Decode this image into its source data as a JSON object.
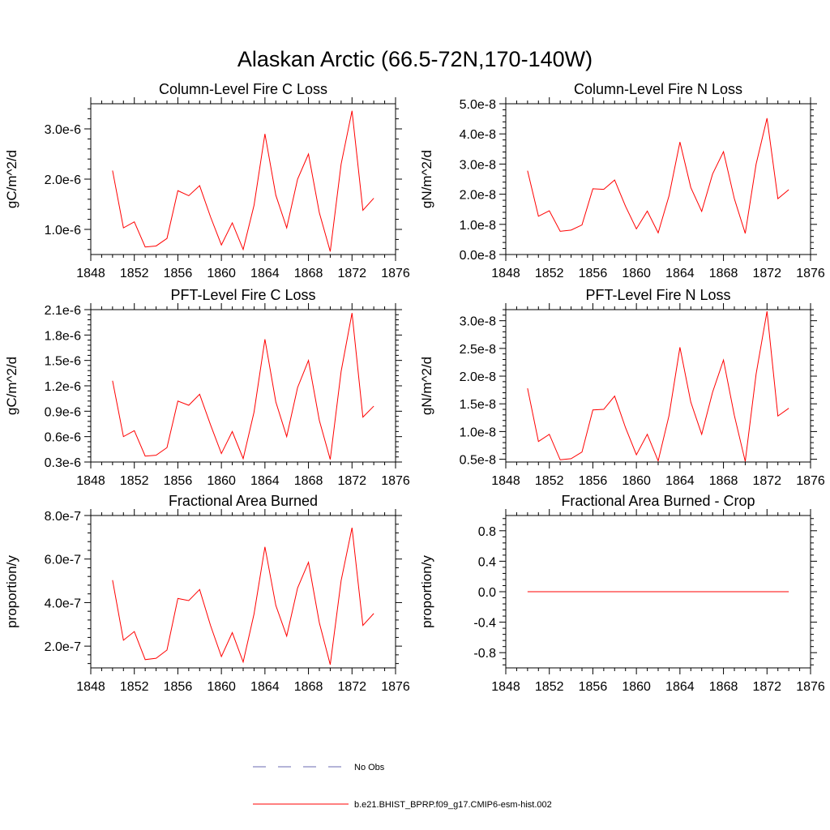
{
  "title": "Alaskan Arctic (66.5-72N,170-140W)",
  "colors": {
    "model": "#ff0000",
    "obs": "#6a6ab0"
  },
  "legend": {
    "position": "bottom-center",
    "entries": [
      {
        "label": "No Obs",
        "style": "dashed",
        "color": "#6a6ab0"
      },
      {
        "label": "b.e21.BHIST_BPRP.f09_g17.CMIP6-esm-hist.002",
        "style": "solid",
        "color": "#ff0000"
      }
    ]
  },
  "chart_data": [
    {
      "type": "line",
      "title": "Column-Level Fire C Loss",
      "ylabel": "gC/m^2/d",
      "xlim": [
        1848,
        1876
      ],
      "x_ticks": [
        1848,
        1852,
        1856,
        1860,
        1864,
        1868,
        1872,
        1876
      ],
      "x_tick_labels": [
        "1848",
        "1852",
        "1856",
        "1860",
        "1864",
        "1868",
        "1872",
        "1876"
      ],
      "ylim": [
        5e-07,
        3.5e-06
      ],
      "y_ticks": [
        1e-06,
        2e-06,
        3e-06
      ],
      "y_tick_labels": [
        "1.0e-6",
        "2.0e-6",
        "3.0e-6"
      ],
      "series": [
        {
          "x": [
            1850,
            1851,
            1852,
            1853,
            1854,
            1855,
            1856,
            1857,
            1858,
            1859,
            1860,
            1861,
            1862,
            1863,
            1864,
            1865,
            1866,
            1867,
            1868,
            1869,
            1870,
            1871,
            1872,
            1873,
            1874
          ],
          "values": [
            2.17e-06,
            1.03e-06,
            1.15e-06,
            6.5e-07,
            6.7e-07,
            8.2e-07,
            1.77e-06,
            1.67e-06,
            1.87e-06,
            1.25e-06,
            6.9e-07,
            1.13e-06,
            6e-07,
            1.48e-06,
            2.9e-06,
            1.68e-06,
            1.03e-06,
            2e-06,
            2.5e-06,
            1.33e-06,
            5.6e-07,
            2.3e-06,
            3.36e-06,
            1.38e-06,
            1.62e-06
          ]
        }
      ]
    },
    {
      "type": "line",
      "title": "Column-Level Fire N Loss",
      "ylabel": "gN/m^2/d",
      "xlim": [
        1848,
        1876
      ],
      "x_ticks": [
        1848,
        1852,
        1856,
        1860,
        1864,
        1868,
        1872,
        1876
      ],
      "x_tick_labels": [
        "1848",
        "1852",
        "1856",
        "1860",
        "1864",
        "1868",
        "1872",
        "1876"
      ],
      "ylim": [
        0.0,
        5e-08
      ],
      "y_ticks": [
        0.0,
        1e-08,
        2e-08,
        3e-08,
        4e-08,
        5e-08
      ],
      "y_tick_labels": [
        "0.0e-8",
        "1.0e-8",
        "2.0e-8",
        "3.0e-8",
        "4.0e-8",
        "5.0e-8"
      ],
      "series": [
        {
          "x": [
            1850,
            1851,
            1852,
            1853,
            1854,
            1855,
            1856,
            1857,
            1858,
            1859,
            1860,
            1861,
            1862,
            1863,
            1864,
            1865,
            1866,
            1867,
            1868,
            1869,
            1870,
            1871,
            1872,
            1873,
            1874
          ],
          "values": [
            2.78e-08,
            1.27e-08,
            1.45e-08,
            7.7e-09,
            8.1e-09,
            9.8e-09,
            2.18e-08,
            2.16e-08,
            2.47e-08,
            1.6e-08,
            8.5e-09,
            1.44e-08,
            7.2e-09,
            1.95e-08,
            3.73e-08,
            2.22e-08,
            1.43e-08,
            2.67e-08,
            3.41e-08,
            1.85e-08,
            7e-09,
            3e-08,
            4.52e-08,
            1.85e-08,
            2.15e-08
          ]
        }
      ]
    },
    {
      "type": "line",
      "title": "PFT-Level Fire C Loss",
      "ylabel": "gC/m^2/d",
      "xlim": [
        1848,
        1876
      ],
      "x_ticks": [
        1848,
        1852,
        1856,
        1860,
        1864,
        1868,
        1872,
        1876
      ],
      "x_tick_labels": [
        "1848",
        "1852",
        "1856",
        "1860",
        "1864",
        "1868",
        "1872",
        "1876"
      ],
      "ylim": [
        3e-07,
        2.1e-06
      ],
      "y_ticks": [
        3e-07,
        6e-07,
        9e-07,
        1.2e-06,
        1.5e-06,
        1.8e-06,
        2.1e-06
      ],
      "y_tick_labels": [
        "0.3e-6",
        "0.6e-6",
        "0.9e-6",
        "1.2e-6",
        "1.5e-6",
        "1.8e-6",
        "2.1e-6"
      ],
      "series": [
        {
          "x": [
            1850,
            1851,
            1852,
            1853,
            1854,
            1855,
            1856,
            1857,
            1858,
            1859,
            1860,
            1861,
            1862,
            1863,
            1864,
            1865,
            1866,
            1867,
            1868,
            1869,
            1870,
            1871,
            1872,
            1873,
            1874
          ],
          "values": [
            1.26e-06,
            6e-07,
            6.7e-07,
            3.7e-07,
            3.8e-07,
            4.7e-07,
            1.02e-06,
            9.7e-07,
            1.1e-06,
            7.4e-07,
            4e-07,
            6.6e-07,
            3.4e-07,
            8.9e-07,
            1.75e-06,
            1.01e-06,
            6e-07,
            1.18e-06,
            1.5e-06,
            7.9e-07,
            3.3e-07,
            1.37e-06,
            2.06e-06,
            8.3e-07,
            9.6e-07
          ]
        }
      ]
    },
    {
      "type": "line",
      "title": "PFT-Level Fire N Loss",
      "ylabel": "gN/m^2/d",
      "xlim": [
        1848,
        1876
      ],
      "x_ticks": [
        1848,
        1852,
        1856,
        1860,
        1864,
        1868,
        1872,
        1876
      ],
      "x_tick_labels": [
        "1848",
        "1852",
        "1856",
        "1860",
        "1864",
        "1868",
        "1872",
        "1876"
      ],
      "ylim": [
        4.5e-09,
        3.2e-08
      ],
      "y_ticks": [
        5e-09,
        1e-08,
        1.5e-08,
        2e-08,
        2.5e-08,
        3e-08
      ],
      "y_tick_labels": [
        "0.5e-8",
        "1.0e-8",
        "1.5e-8",
        "2.0e-8",
        "2.5e-8",
        "3.0e-8"
      ],
      "series": [
        {
          "x": [
            1850,
            1851,
            1852,
            1853,
            1854,
            1855,
            1856,
            1857,
            1858,
            1859,
            1860,
            1861,
            1862,
            1863,
            1864,
            1865,
            1866,
            1867,
            1868,
            1869,
            1870,
            1871,
            1872,
            1873,
            1874
          ],
          "values": [
            1.78e-08,
            8.2e-09,
            9.5e-09,
            4.9e-09,
            5.1e-09,
            6.3e-09,
            1.39e-08,
            1.4e-08,
            1.64e-08,
            1.07e-08,
            5.8e-09,
            9.5e-09,
            4.7e-09,
            1.29e-08,
            2.52e-08,
            1.53e-08,
            9.5e-09,
            1.71e-08,
            2.29e-08,
            1.29e-08,
            4.6e-09,
            2.04e-08,
            3.17e-08,
            1.28e-08,
            1.42e-08
          ]
        }
      ]
    },
    {
      "type": "line",
      "title": "Fractional Area Burned",
      "ylabel": "proportion/y",
      "xlim": [
        1848,
        1876
      ],
      "x_ticks": [
        1848,
        1852,
        1856,
        1860,
        1864,
        1868,
        1872,
        1876
      ],
      "x_tick_labels": [
        "1848",
        "1852",
        "1856",
        "1860",
        "1864",
        "1868",
        "1872",
        "1876"
      ],
      "ylim": [
        1e-07,
        8e-07
      ],
      "y_ticks": [
        2e-07,
        4e-07,
        6e-07,
        8e-07
      ],
      "y_tick_labels": [
        "2.0e-7",
        "4.0e-7",
        "6.0e-7",
        "8.0e-7"
      ],
      "series": [
        {
          "x": [
            1850,
            1851,
            1852,
            1853,
            1854,
            1855,
            1856,
            1857,
            1858,
            1859,
            1860,
            1861,
            1862,
            1863,
            1864,
            1865,
            1866,
            1867,
            1868,
            1869,
            1870,
            1871,
            1872,
            1873,
            1874
          ],
          "values": [
            5.03e-07,
            2.27e-07,
            2.67e-07,
            1.38e-07,
            1.44e-07,
            1.82e-07,
            4.19e-07,
            4.09e-07,
            4.6e-07,
            2.95e-07,
            1.52e-07,
            2.62e-07,
            1.27e-07,
            3.48e-07,
            6.56e-07,
            3.87e-07,
            2.46e-07,
            4.67e-07,
            5.85e-07,
            3.07e-07,
            1.15e-07,
            5.01e-07,
            7.44e-07,
            2.95e-07,
            3.5e-07
          ]
        }
      ]
    },
    {
      "type": "line",
      "title": "Fractional Area Burned - Crop",
      "ylabel": "proportion/y",
      "xlim": [
        1848,
        1876
      ],
      "x_ticks": [
        1848,
        1852,
        1856,
        1860,
        1864,
        1868,
        1872,
        1876
      ],
      "x_tick_labels": [
        "1848",
        "1852",
        "1856",
        "1860",
        "1864",
        "1868",
        "1872",
        "1876"
      ],
      "ylim": [
        -1.0,
        1.0
      ],
      "y_ticks": [
        -0.8,
        -0.4,
        0.0,
        0.4,
        0.8
      ],
      "y_tick_labels": [
        "-0.8",
        "-0.4",
        "0.0",
        "0.4",
        "0.8"
      ],
      "series": [
        {
          "x": [
            1850,
            1851,
            1852,
            1853,
            1854,
            1855,
            1856,
            1857,
            1858,
            1859,
            1860,
            1861,
            1862,
            1863,
            1864,
            1865,
            1866,
            1867,
            1868,
            1869,
            1870,
            1871,
            1872,
            1873,
            1874
          ],
          "values": [
            0,
            0,
            0,
            0,
            0,
            0,
            0,
            0,
            0,
            0,
            0,
            0,
            0,
            0,
            0,
            0,
            0,
            0,
            0,
            0,
            0,
            0,
            0,
            0,
            0
          ]
        }
      ]
    }
  ]
}
